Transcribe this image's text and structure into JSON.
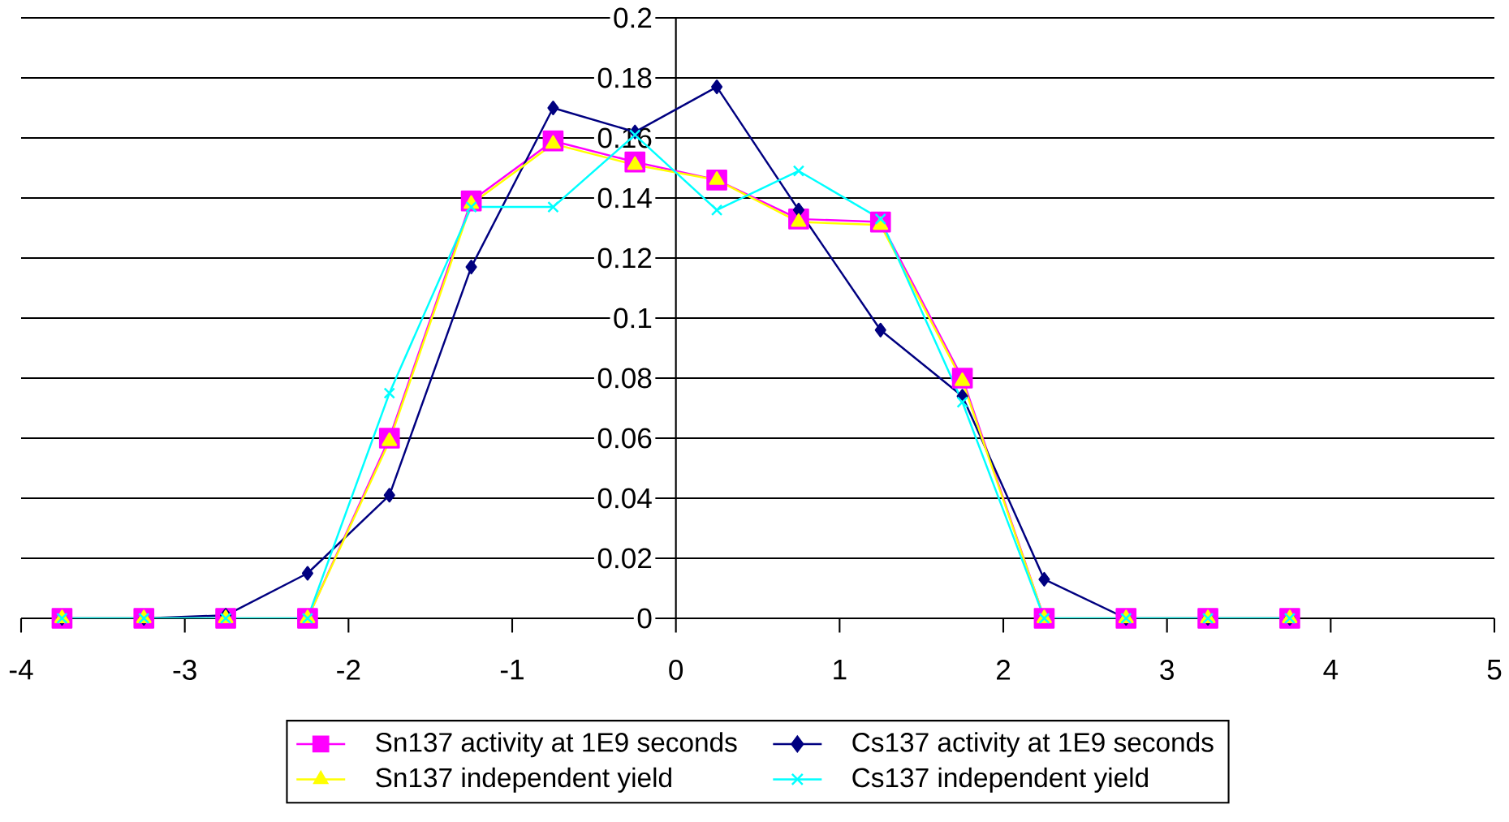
{
  "chart_data": {
    "type": "line",
    "x": [
      -3.75,
      -3.25,
      -2.75,
      -2.25,
      -1.75,
      -1.25,
      -0.75,
      -0.25,
      0.25,
      0.75,
      1.25,
      1.75,
      2.25,
      2.75,
      3.25,
      3.75
    ],
    "series": [
      {
        "name": "Sn137 activity at 1E9 seconds",
        "color": "#ff00ff",
        "marker": "square",
        "values": [
          0,
          0,
          0,
          0,
          0.06,
          0.139,
          0.159,
          0.152,
          0.146,
          0.133,
          0.132,
          0.08,
          0,
          0,
          0,
          0
        ]
      },
      {
        "name": "Cs137 activity at 1E9 seconds",
        "color": "#000080",
        "marker": "diamond",
        "values": [
          0,
          0,
          0.001,
          0.015,
          0.041,
          0.117,
          0.17,
          0.162,
          0.177,
          0.136,
          0.096,
          0.074,
          0.013,
          0,
          0,
          0
        ]
      },
      {
        "name": "Sn137 independent yield",
        "color": "#ffff00",
        "marker": "triangle",
        "values": [
          0,
          0,
          0,
          0,
          0.059,
          0.138,
          0.158,
          0.151,
          0.146,
          0.132,
          0.131,
          0.079,
          0,
          0,
          0,
          0
        ]
      },
      {
        "name": "Cs137 independent yield",
        "color": "#00ffff",
        "marker": "cross",
        "values": [
          0,
          0,
          0,
          0,
          0.075,
          0.137,
          0.137,
          0.161,
          0.136,
          0.149,
          0.133,
          0.072,
          0,
          0,
          0,
          0
        ]
      }
    ],
    "xlim": [
      -4,
      5
    ],
    "ylim": [
      0,
      0.2
    ],
    "xticks": [
      -4,
      -3,
      -2,
      -1,
      0,
      1,
      2,
      3,
      4,
      5
    ],
    "yticks": [
      0,
      0.02,
      0.04,
      0.06,
      0.08,
      0.1,
      0.12,
      0.14,
      0.16,
      0.18,
      0.2
    ],
    "grid": "y",
    "legend": "bottom"
  }
}
